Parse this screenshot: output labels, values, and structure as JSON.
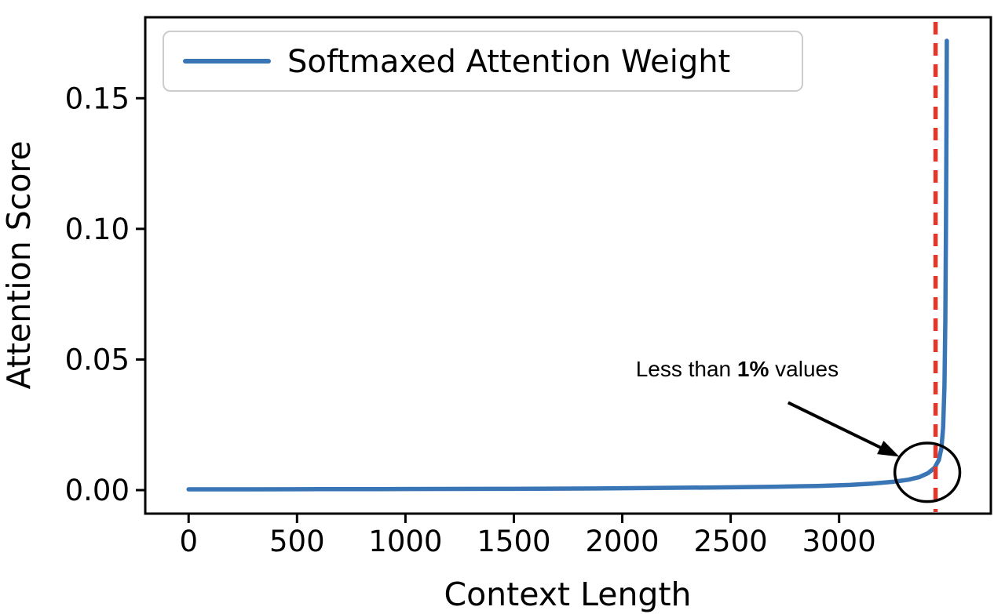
{
  "figure": {
    "background": "#ffffff",
    "axis_color": "#000000"
  },
  "chart_data": {
    "type": "line",
    "title": "",
    "xlabel": "Context Length",
    "ylabel": "Attention Score",
    "xlim": [
      -200,
      3700
    ],
    "ylim": [
      -0.009,
      0.181
    ],
    "xticks": [
      0,
      500,
      1000,
      1500,
      2000,
      2500,
      3000
    ],
    "yticks": [
      0,
      0.05,
      0.1,
      0.15
    ],
    "ytick_decimals": 2,
    "grid": false,
    "legend": {
      "position": "upper-left",
      "entries": [
        {
          "label": "Softmaxed Attention Weight",
          "color": "#3a76b5"
        }
      ]
    },
    "series": [
      {
        "name": "Softmaxed Attention Weight",
        "color": "#3a76b5",
        "points": [
          [
            0,
            0.0003
          ],
          [
            300,
            0.0003
          ],
          [
            600,
            0.00035
          ],
          [
            900,
            0.0004
          ],
          [
            1200,
            0.00045
          ],
          [
            1500,
            0.0005
          ],
          [
            1800,
            0.0006
          ],
          [
            2100,
            0.0008
          ],
          [
            2400,
            0.001
          ],
          [
            2700,
            0.0013
          ],
          [
            2900,
            0.0016
          ],
          [
            3050,
            0.002
          ],
          [
            3150,
            0.0025
          ],
          [
            3250,
            0.0032
          ],
          [
            3320,
            0.004
          ],
          [
            3370,
            0.005
          ],
          [
            3410,
            0.0065
          ],
          [
            3440,
            0.0085
          ],
          [
            3460,
            0.0115
          ],
          [
            3472,
            0.016
          ],
          [
            3480,
            0.024
          ],
          [
            3486,
            0.04
          ],
          [
            3490,
            0.065
          ],
          [
            3493,
            0.1
          ],
          [
            3495,
            0.135
          ],
          [
            3497,
            0.172
          ]
        ]
      }
    ],
    "vline": {
      "x": 3445,
      "color": "#e4372b",
      "style": "dashed"
    },
    "annotation": {
      "text_prefix": "Less than ",
      "text_bold": "1%",
      "text_suffix": " values",
      "text_xy": [
        2530,
        0.0435
      ],
      "arrow_from": [
        2765,
        0.0335
      ],
      "arrow_to": [
        3278,
        0.0128
      ],
      "arrow_color": "#000000",
      "circle_center": [
        3407,
        0.0068
      ],
      "circle_rx": 150,
      "circle_ry": 0.0112,
      "circle_color": "#000000"
    }
  }
}
